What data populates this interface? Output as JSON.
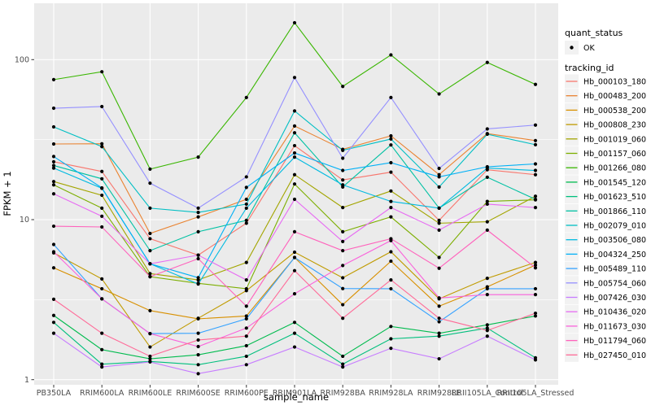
{
  "figure": {
    "panel_bg": "#EBEBEB",
    "grid_color": "#FFFFFF",
    "legend_key_bg": "#F2F2F2",
    "axis_text_color": "#4D4D4D",
    "tick_mark_color": "#333333",
    "point_color": "#000000"
  },
  "chart_data": {
    "type": "line",
    "title": "",
    "xlabel": "sample_name",
    "ylabel": "FPKM + 1",
    "yscale": "log10",
    "ylim": [
      0.93,
      225
    ],
    "y_ticks": [
      1,
      10,
      100
    ],
    "y_tick_labels": [
      "1",
      "10",
      "100"
    ],
    "y_minor_ticks": [
      3.16,
      31.6
    ],
    "grid": "on",
    "legend_position": "right",
    "point_shape": "filled-dot",
    "categories": [
      "PB350LA",
      "RRIM600LA",
      "RRIM600LE",
      "RRIM600SE",
      "RRIM600PE",
      "RRIM901LA",
      "RRIM928BA",
      "RRIM928LA",
      "RRIM928LE",
      "RRII105LA_Control",
      "RRII105LA_Stressed"
    ],
    "legend": {
      "quant_status_title": "quant_status",
      "quant_status_items": [
        {
          "label": "OK",
          "symbol": "point",
          "color": "#000000"
        }
      ],
      "tracking_id_title": "tracking_id"
    },
    "series": [
      {
        "name": "Hb_000103_180",
        "color": "#F8766D",
        "values": [
          23,
          20,
          7.6,
          6.0,
          9.5,
          29,
          17.7,
          19.8,
          9.9,
          20.5,
          19.1
        ]
      },
      {
        "name": "Hb_000483_200",
        "color": "#EA8331",
        "values": [
          29.7,
          29.8,
          8.2,
          10.4,
          13.4,
          38.5,
          27.5,
          33.4,
          19.1,
          34.5,
          31.2
        ]
      },
      {
        "name": "Hb_000538_200",
        "color": "#D89000",
        "values": [
          5.0,
          3.7,
          2.7,
          2.4,
          2.5,
          5.8,
          2.94,
          5.5,
          2.88,
          3.8,
          5.2
        ]
      },
      {
        "name": "Hb_000808_230",
        "color": "#C09B00",
        "values": [
          6.2,
          4.26,
          1.6,
          2.42,
          3.6,
          6.26,
          4.33,
          6.3,
          3.2,
          4.3,
          5.4
        ]
      },
      {
        "name": "Hb_001019_060",
        "color": "#A3A500",
        "values": [
          17.3,
          14.2,
          4.6,
          4.2,
          5.4,
          19.1,
          11.9,
          15.1,
          9.5,
          9.7,
          14.0
        ]
      },
      {
        "name": "Hb_001157_060",
        "color": "#7CAE00",
        "values": [
          16.5,
          11.8,
          4.4,
          4.0,
          3.7,
          16.7,
          8.4,
          10.4,
          5.8,
          13.0,
          13.3
        ]
      },
      {
        "name": "Hb_001266_080",
        "color": "#39B600",
        "values": [
          75,
          84,
          20.7,
          24.6,
          58,
          170,
          68,
          107,
          61,
          96,
          70
        ]
      },
      {
        "name": "Hb_001545_120",
        "color": "#00BB4E",
        "values": [
          2.52,
          1.54,
          1.35,
          1.43,
          1.63,
          2.28,
          1.4,
          2.15,
          1.95,
          2.2,
          2.5
        ]
      },
      {
        "name": "Hb_001623_510",
        "color": "#00BF7D",
        "values": [
          2.28,
          1.25,
          1.3,
          1.24,
          1.4,
          1.95,
          1.25,
          1.8,
          1.87,
          2.1,
          1.37
        ]
      },
      {
        "name": "Hb_001866_110",
        "color": "#00C1A3",
        "values": [
          21.8,
          18.0,
          6.4,
          8.4,
          9.9,
          34.9,
          16.0,
          29.3,
          11.8,
          18.4,
          13.4
        ]
      },
      {
        "name": "Hb_002079_010",
        "color": "#00BFC4",
        "values": [
          38,
          28.6,
          11.8,
          11.1,
          12.5,
          47.8,
          27.1,
          31.9,
          16.0,
          34.2,
          29.4
        ]
      },
      {
        "name": "Hb_003506_080",
        "color": "#00BAE0",
        "values": [
          21.0,
          15.7,
          5.3,
          3.96,
          11.8,
          24.6,
          16.5,
          13.0,
          11.8,
          21.0,
          20.3
        ]
      },
      {
        "name": "Hb_004324_250",
        "color": "#00B0F6",
        "values": [
          24.8,
          15.8,
          5.3,
          4.34,
          15.9,
          26.1,
          20.3,
          22.7,
          18.5,
          21.4,
          22.3
        ]
      },
      {
        "name": "Hb_005489_110",
        "color": "#35A2FF",
        "values": [
          7.0,
          3.2,
          1.94,
          1.95,
          2.4,
          5.8,
          3.71,
          3.7,
          2.3,
          3.7,
          3.7
        ]
      },
      {
        "name": "Hb_005754_060",
        "color": "#9590FF",
        "values": [
          49.7,
          50.9,
          16.9,
          11.8,
          18.5,
          77.3,
          24.2,
          58,
          20.9,
          36.9,
          39
        ]
      },
      {
        "name": "Hb_007426_030",
        "color": "#C77CFF",
        "values": [
          1.95,
          1.2,
          1.29,
          1.09,
          1.24,
          1.6,
          1.2,
          1.57,
          1.35,
          1.87,
          1.33
        ]
      },
      {
        "name": "Hb_010436_020",
        "color": "#E76BF3",
        "values": [
          14.5,
          10.5,
          5.3,
          6.0,
          4.2,
          13.4,
          7.3,
          11.9,
          8.6,
          12.5,
          11.9
        ]
      },
      {
        "name": "Hb_011673_030",
        "color": "#FA62DB",
        "values": [
          6.3,
          3.2,
          1.94,
          1.61,
          2.1,
          3.44,
          5.17,
          7.4,
          3.24,
          3.4,
          3.4
        ]
      },
      {
        "name": "Hb_011794_060",
        "color": "#FF62BC",
        "values": [
          9.1,
          9.0,
          4.4,
          5.7,
          2.88,
          8.4,
          6.4,
          7.6,
          4.97,
          8.6,
          5.0
        ]
      },
      {
        "name": "Hb_027450_010",
        "color": "#FF6A98",
        "values": [
          3.18,
          1.95,
          1.4,
          1.77,
          1.87,
          4.8,
          2.42,
          4.2,
          2.42,
          2.03,
          2.6
        ]
      }
    ]
  }
}
